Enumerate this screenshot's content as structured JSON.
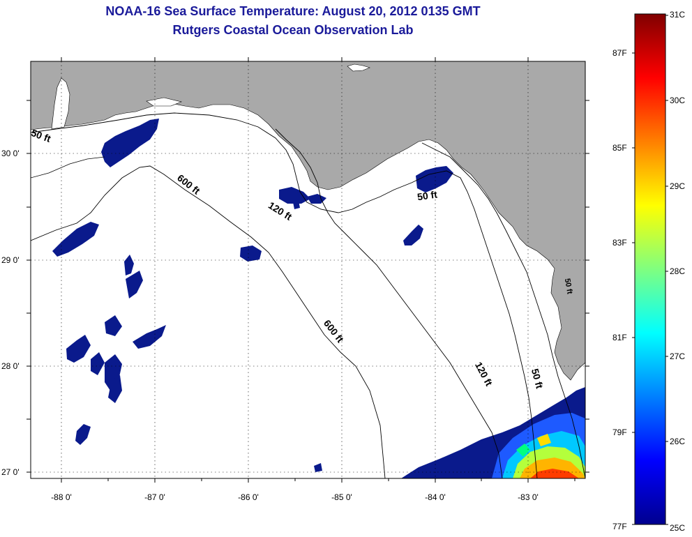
{
  "title": {
    "line1": "NOAA-16 Sea Surface Temperature:  August 20, 2012 0135 GMT",
    "line2": "Rutgers Coastal Ocean Observation Lab"
  },
  "axes": {
    "lat_labels": [
      "30 0'",
      "29 0'",
      "28 0'",
      "27 0'"
    ],
    "lon_labels": [
      "-88 0'",
      "-87 0'",
      "-86 0'",
      "-85 0'",
      "-84 0'",
      "-83 0'"
    ]
  },
  "contour_labels": [
    "50 ft",
    "600 ft",
    "120 ft",
    "50 ft",
    "600 ft",
    "120 ft",
    "50 ft",
    "50 ft"
  ],
  "colorbar": {
    "celsius_labels": [
      "31C",
      "30C",
      "29C",
      "28C",
      "27C",
      "26C",
      "25C"
    ],
    "fahrenheit_labels": [
      "87F",
      "85F",
      "83F",
      "81F",
      "79F",
      "77F"
    ]
  },
  "colors": {
    "land": "#a9a9a9",
    "ocean_no_data": "#ffffff",
    "cold_patches": "#0a1a8c",
    "title_text": "#1a1a9a"
  }
}
